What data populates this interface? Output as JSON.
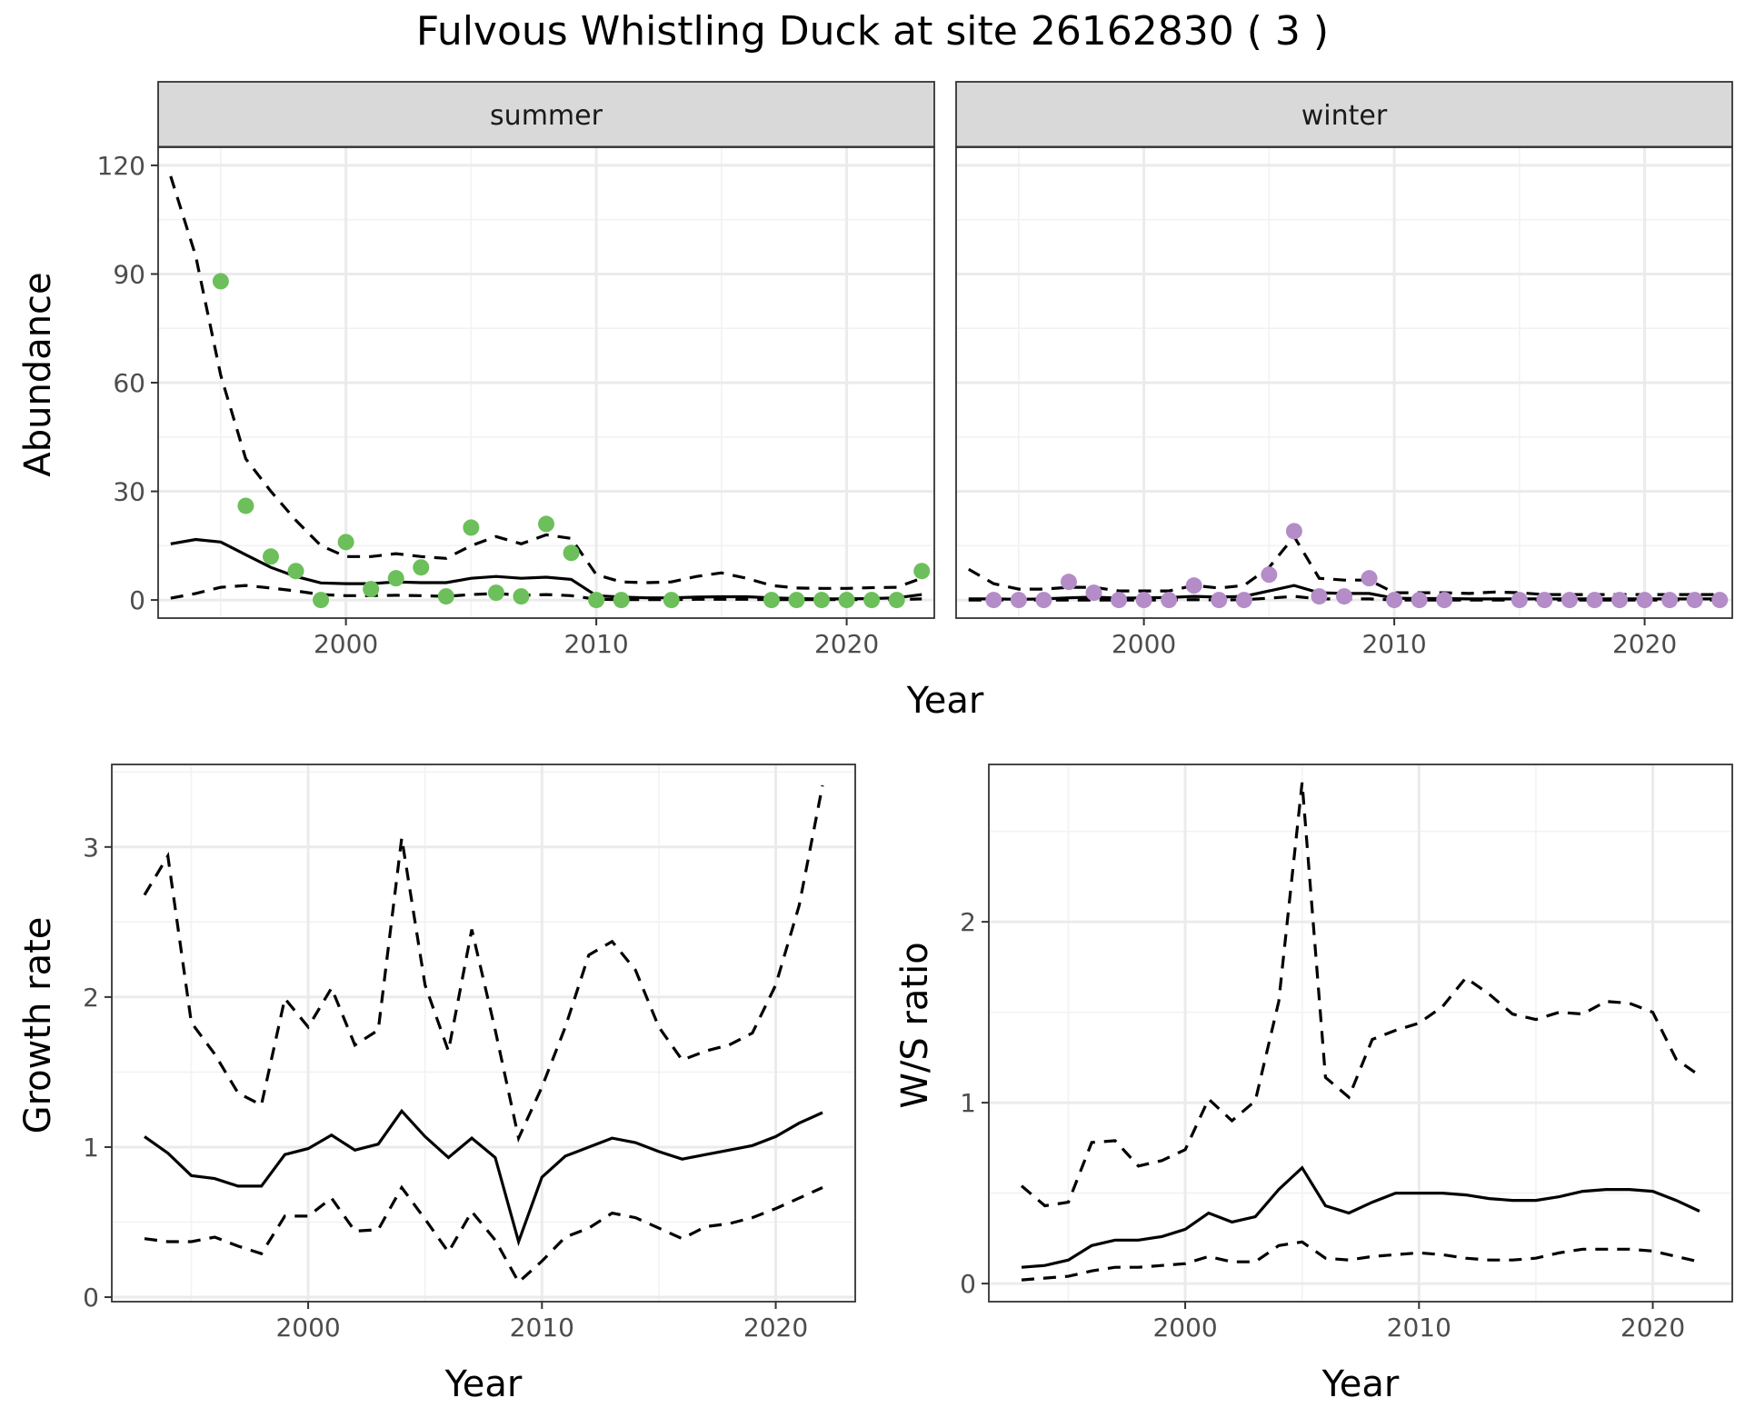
{
  "title": "Fulvous Whistling Duck at site 26162830 ( 3 )",
  "colors": {
    "summer_points": "#6cbf5a",
    "winter_points": "#b48cc8",
    "strip_fill": "#d9d9d9"
  },
  "chart_data": [
    {
      "type": "line",
      "panel": "abundance-summer",
      "strip_label": "summer",
      "ylabel": "Abundance",
      "xlabel": "Year",
      "xlim": [
        1992.5,
        2023.5
      ],
      "ylim": [
        -5,
        125
      ],
      "xticks": [
        2000,
        2010,
        2020
      ],
      "yticks": [
        0,
        30,
        60,
        90,
        120
      ],
      "grid": true,
      "series": [
        {
          "role": "mean",
          "style": "solid",
          "x": [
            1993,
            1994,
            1995,
            1996,
            1997,
            1998,
            1999,
            2000,
            2001,
            2002,
            2003,
            2004,
            2005,
            2006,
            2007,
            2008,
            2009,
            2010,
            2011,
            2012,
            2013,
            2014,
            2015,
            2016,
            2017,
            2018,
            2019,
            2020,
            2021,
            2022,
            2023
          ],
          "y": [
            15.5,
            16.7,
            16,
            12.5,
            9,
            6.5,
            4.7,
            4.5,
            4.5,
            5,
            4.8,
            4.8,
            6,
            6.5,
            6,
            6.3,
            5.7,
            1.2,
            0.8,
            0.6,
            0.6,
            0.8,
            0.9,
            0.9,
            0.6,
            0.4,
            0.3,
            0.3,
            0.4,
            0.6,
            1.5
          ]
        },
        {
          "role": "upper",
          "style": "dashed",
          "x": [
            1993,
            1994,
            1995,
            1996,
            1997,
            1998,
            1999,
            2000,
            2001,
            2002,
            2003,
            2004,
            2005,
            2006,
            2007,
            2008,
            2009,
            2010,
            2011,
            2012,
            2013,
            2014,
            2015,
            2016,
            2017,
            2018,
            2019,
            2020,
            2021,
            2022,
            2023
          ],
          "y": [
            117,
            95,
            62,
            39,
            30,
            22,
            15,
            12,
            12,
            12.8,
            12,
            11.5,
            15,
            17.5,
            15.5,
            18,
            17,
            7,
            5,
            4.8,
            5,
            6.5,
            7.5,
            6,
            4,
            3.3,
            3.2,
            3.2,
            3.4,
            3.5,
            6
          ]
        },
        {
          "role": "lower",
          "style": "dashed",
          "x": [
            1993,
            1994,
            1995,
            1996,
            1997,
            1998,
            1999,
            2000,
            2001,
            2002,
            2003,
            2004,
            2005,
            2006,
            2007,
            2008,
            2009,
            2010,
            2011,
            2012,
            2013,
            2014,
            2015,
            2016,
            2017,
            2018,
            2019,
            2020,
            2021,
            2022,
            2023
          ],
          "y": [
            0.5,
            1.8,
            3.5,
            4,
            3.3,
            2.5,
            1.5,
            1.2,
            1.2,
            1.3,
            1.2,
            1,
            1.5,
            1.8,
            1.3,
            1.5,
            1.2,
            0.2,
            0.1,
            0.1,
            0.1,
            0.2,
            0.2,
            0.2,
            0.1,
            0.1,
            0.1,
            0.1,
            0.1,
            0.1,
            0.3
          ]
        }
      ],
      "points": {
        "x": [
          1995,
          1996,
          1997,
          1998,
          1999,
          2000,
          2001,
          2002,
          2003,
          2004,
          2005,
          2006,
          2007,
          2008,
          2009,
          2010,
          2011,
          2013,
          2017,
          2018,
          2019,
          2020,
          2021,
          2022,
          2023
        ],
        "y": [
          88,
          26,
          12,
          8,
          0,
          16,
          3,
          6,
          9,
          1,
          20,
          2,
          1,
          21,
          13,
          0,
          0,
          0,
          0,
          0,
          0,
          0,
          0,
          0,
          8
        ]
      }
    },
    {
      "type": "line",
      "panel": "abundance-winter",
      "strip_label": "winter",
      "xlabel": "Year",
      "xlim": [
        1992.5,
        2023.5
      ],
      "ylim": [
        -5,
        125
      ],
      "xticks": [
        2000,
        2010,
        2020
      ],
      "yticks": [
        0,
        30,
        60,
        90,
        120
      ],
      "grid": true,
      "series": [
        {
          "role": "mean",
          "style": "solid",
          "x": [
            1993,
            1994,
            1995,
            1996,
            1997,
            1998,
            1999,
            2000,
            2001,
            2002,
            2003,
            2004,
            2005,
            2006,
            2007,
            2008,
            2009,
            2010,
            2011,
            2012,
            2013,
            2014,
            2015,
            2016,
            2017,
            2018,
            2019,
            2020,
            2021,
            2022,
            2023
          ],
          "y": [
            0.3,
            0.3,
            0.2,
            0.3,
            0.6,
            0.8,
            0.5,
            0.6,
            0.7,
            1,
            0.8,
            1,
            2.5,
            4,
            2,
            1.8,
            1.8,
            0.5,
            0.4,
            0.4,
            0.3,
            0.3,
            0.3,
            0.3,
            0.3,
            0.3,
            0.3,
            0.3,
            0.3,
            0.3,
            0.3
          ]
        },
        {
          "role": "upper",
          "style": "dashed",
          "x": [
            1993,
            1994,
            1995,
            1996,
            1997,
            1998,
            1999,
            2000,
            2001,
            2002,
            2003,
            2004,
            2005,
            2006,
            2007,
            2008,
            2009,
            2010,
            2011,
            2012,
            2013,
            2014,
            2015,
            2016,
            2017,
            2018,
            2019,
            2020,
            2021,
            2022,
            2023
          ],
          "y": [
            8.5,
            4.5,
            3,
            3,
            3.5,
            3.5,
            2.5,
            2.5,
            2.5,
            4,
            3.3,
            4,
            9,
            17.5,
            6,
            5.5,
            5.5,
            2,
            2,
            2,
            1.8,
            2.2,
            2,
            1.5,
            1.5,
            1.5,
            1.5,
            1.5,
            1.5,
            1.5,
            1.5
          ]
        },
        {
          "role": "lower",
          "style": "dashed",
          "x": [
            1993,
            1994,
            1995,
            1996,
            1997,
            1998,
            1999,
            2000,
            2001,
            2002,
            2003,
            2004,
            2005,
            2006,
            2007,
            2008,
            2009,
            2010,
            2011,
            2012,
            2013,
            2014,
            2015,
            2016,
            2017,
            2018,
            2019,
            2020,
            2021,
            2022,
            2023
          ],
          "y": [
            0,
            0,
            0,
            0,
            0,
            0,
            0,
            0,
            0,
            0.1,
            0,
            0.1,
            0.5,
            1,
            0.3,
            0.3,
            0.3,
            0,
            0,
            0,
            0,
            0,
            0,
            0,
            0,
            0,
            0,
            0,
            0,
            0,
            0
          ]
        }
      ],
      "points": {
        "x": [
          1994,
          1995,
          1996,
          1997,
          1998,
          1999,
          2000,
          2001,
          2002,
          2003,
          2004,
          2005,
          2006,
          2007,
          2008,
          2009,
          2010,
          2011,
          2012,
          2015,
          2016,
          2017,
          2018,
          2019,
          2020,
          2021,
          2022,
          2023
        ],
        "y": [
          0,
          0,
          0,
          5,
          2,
          0,
          0,
          0,
          4,
          0,
          0,
          7,
          19,
          1,
          1,
          6,
          0,
          0,
          0,
          0,
          0,
          0,
          0,
          0,
          0,
          0,
          0,
          0
        ]
      }
    },
    {
      "type": "line",
      "panel": "growth-rate",
      "xlabel": "Year",
      "ylabel": "Growth rate",
      "xlim": [
        1991.6,
        2023.4
      ],
      "ylim": [
        -0.03,
        3.55
      ],
      "xticks": [
        2000,
        2010,
        2020
      ],
      "yticks": [
        0,
        1,
        2,
        3
      ],
      "grid": true,
      "series": [
        {
          "role": "mean",
          "style": "solid",
          "x": [
            1993,
            1994,
            1995,
            1996,
            1997,
            1998,
            1999,
            2000,
            2001,
            2002,
            2003,
            2004,
            2005,
            2006,
            2007,
            2008,
            2009,
            2010,
            2011,
            2012,
            2013,
            2014,
            2015,
            2016,
            2017,
            2018,
            2019,
            2020,
            2021,
            2022
          ],
          "y": [
            1.07,
            0.96,
            0.81,
            0.79,
            0.74,
            0.74,
            0.95,
            0.99,
            1.08,
            0.98,
            1.02,
            1.24,
            1.07,
            0.93,
            1.06,
            0.93,
            0.37,
            0.8,
            0.94,
            1.0,
            1.06,
            1.03,
            0.97,
            0.92,
            0.95,
            0.98,
            1.01,
            1.07,
            1.16,
            1.23
          ]
        },
        {
          "role": "upper",
          "style": "dashed",
          "x": [
            1993,
            1994,
            1995,
            1996,
            1997,
            1998,
            1999,
            2000,
            2001,
            2002,
            2003,
            2004,
            2005,
            2006,
            2007,
            2008,
            2009,
            2010,
            2011,
            2012,
            2013,
            2014,
            2015,
            2016,
            2017,
            2018,
            2019,
            2020,
            2021,
            2022
          ],
          "y": [
            2.68,
            2.94,
            1.83,
            1.62,
            1.36,
            1.28,
            1.99,
            1.8,
            2.06,
            1.68,
            1.78,
            3.06,
            2.08,
            1.64,
            2.45,
            1.78,
            1.06,
            1.4,
            1.8,
            2.28,
            2.37,
            2.18,
            1.8,
            1.58,
            1.64,
            1.68,
            1.76,
            2.08,
            2.61,
            3.41
          ]
        },
        {
          "role": "lower",
          "style": "dashed",
          "x": [
            1993,
            1994,
            1995,
            1996,
            1997,
            1998,
            1999,
            2000,
            2001,
            2002,
            2003,
            2004,
            2005,
            2006,
            2007,
            2008,
            2009,
            2010,
            2011,
            2012,
            2013,
            2014,
            2015,
            2016,
            2017,
            2018,
            2019,
            2020,
            2021,
            2022
          ],
          "y": [
            0.39,
            0.37,
            0.37,
            0.4,
            0.34,
            0.29,
            0.54,
            0.54,
            0.66,
            0.44,
            0.45,
            0.73,
            0.52,
            0.3,
            0.57,
            0.38,
            0.1,
            0.24,
            0.4,
            0.46,
            0.56,
            0.53,
            0.46,
            0.39,
            0.47,
            0.49,
            0.53,
            0.59,
            0.66,
            0.73
          ]
        }
      ]
    },
    {
      "type": "line",
      "panel": "ws-ratio",
      "xlabel": "Year",
      "ylabel": "W/S ratio",
      "xlim": [
        1991.6,
        2023.4
      ],
      "ylim": [
        -0.1,
        2.87
      ],
      "xticks": [
        2000,
        2010,
        2020
      ],
      "yticks": [
        0,
        1,
        2
      ],
      "grid": true,
      "series": [
        {
          "role": "mean",
          "style": "solid",
          "x": [
            1993,
            1994,
            1995,
            1996,
            1997,
            1998,
            1999,
            2000,
            2001,
            2002,
            2003,
            2004,
            2005,
            2006,
            2007,
            2008,
            2009,
            2010,
            2011,
            2012,
            2013,
            2014,
            2015,
            2016,
            2017,
            2018,
            2019,
            2020,
            2021,
            2022
          ],
          "y": [
            0.09,
            0.1,
            0.13,
            0.21,
            0.24,
            0.24,
            0.26,
            0.3,
            0.39,
            0.34,
            0.37,
            0.52,
            0.64,
            0.43,
            0.39,
            0.45,
            0.5,
            0.5,
            0.5,
            0.49,
            0.47,
            0.46,
            0.46,
            0.48,
            0.51,
            0.52,
            0.52,
            0.51,
            0.46,
            0.4
          ]
        },
        {
          "role": "upper",
          "style": "dashed",
          "x": [
            1993,
            1994,
            1995,
            1996,
            1997,
            1998,
            1999,
            2000,
            2001,
            2002,
            2003,
            2004,
            2005,
            2006,
            2007,
            2008,
            2009,
            2010,
            2011,
            2012,
            2013,
            2014,
            2015,
            2016,
            2017,
            2018,
            2019,
            2020,
            2021,
            2022
          ],
          "y": [
            0.54,
            0.43,
            0.45,
            0.78,
            0.79,
            0.65,
            0.68,
            0.74,
            1.02,
            0.9,
            1.01,
            1.56,
            2.77,
            1.14,
            1.03,
            1.35,
            1.4,
            1.44,
            1.53,
            1.69,
            1.6,
            1.49,
            1.46,
            1.5,
            1.49,
            1.56,
            1.55,
            1.5,
            1.24,
            1.15
          ]
        },
        {
          "role": "lower",
          "style": "dashed",
          "x": [
            1993,
            1994,
            1995,
            1996,
            1997,
            1998,
            1999,
            2000,
            2001,
            2002,
            2003,
            2004,
            2005,
            2006,
            2007,
            2008,
            2009,
            2010,
            2011,
            2012,
            2013,
            2014,
            2015,
            2016,
            2017,
            2018,
            2019,
            2020,
            2021,
            2022
          ],
          "y": [
            0.02,
            0.03,
            0.04,
            0.07,
            0.09,
            0.09,
            0.1,
            0.11,
            0.15,
            0.12,
            0.12,
            0.21,
            0.23,
            0.14,
            0.13,
            0.15,
            0.16,
            0.17,
            0.16,
            0.14,
            0.13,
            0.13,
            0.14,
            0.17,
            0.19,
            0.19,
            0.19,
            0.18,
            0.15,
            0.12
          ]
        }
      ]
    }
  ]
}
